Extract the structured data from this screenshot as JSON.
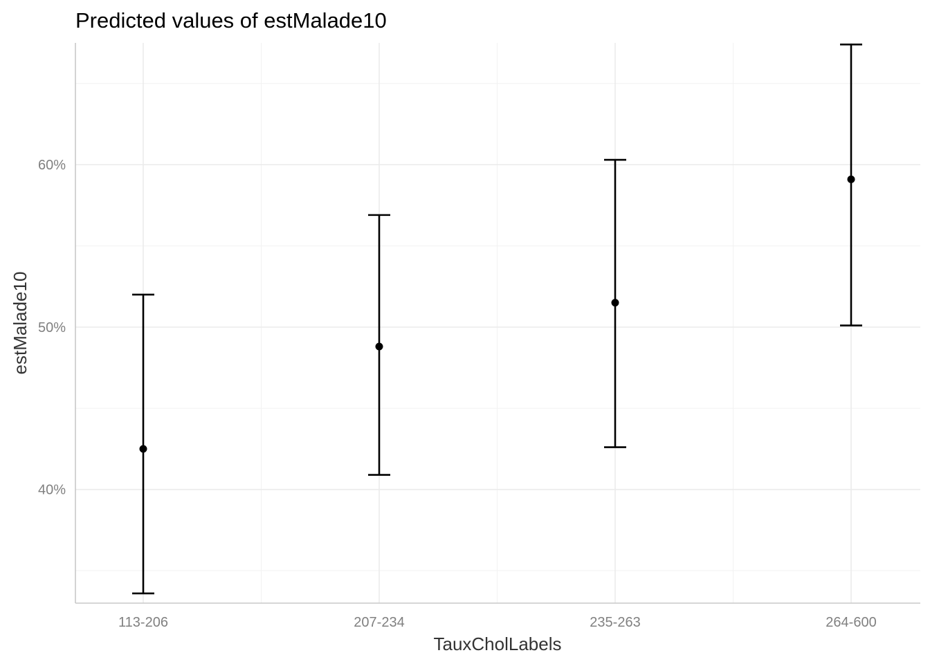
{
  "chart_data": {
    "type": "scatter",
    "title": "Predicted values of estMalade10",
    "xlabel": "TauxCholLabels",
    "ylabel": "estMalade10",
    "categories": [
      "113-206",
      "207-234",
      "235-263",
      "264-600"
    ],
    "series": [
      {
        "predicted": [
          42.5,
          48.8,
          51.5,
          59.1
        ],
        "conf_low": [
          33.6,
          40.9,
          42.6,
          50.1
        ],
        "conf_high": [
          52.0,
          56.9,
          60.3,
          67.4
        ]
      }
    ],
    "ylim": [
      33.0,
      67.5
    ],
    "yticks": [
      40,
      50,
      60
    ],
    "ytick_labels": [
      "40%",
      "50%",
      "60%"
    ],
    "grid": true,
    "legend": "none"
  }
}
